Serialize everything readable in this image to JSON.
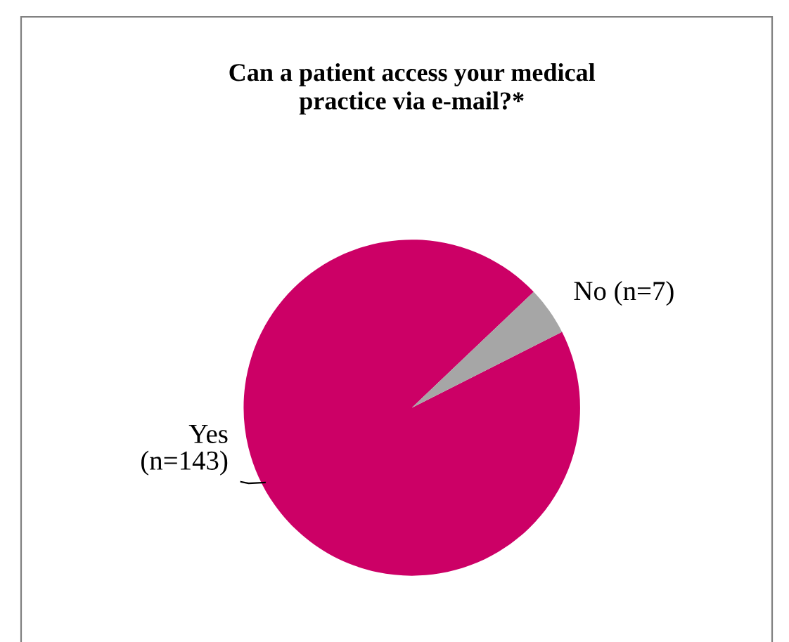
{
  "chart_data": {
    "type": "pie",
    "title": "Can a patient access your medical\npractice via e-mail?*",
    "categories": [
      "Yes",
      "No"
    ],
    "values": [
      143,
      7
    ],
    "value_labels": [
      "(n=143)",
      "(n=7)"
    ],
    "colors": [
      "#cc0066",
      "#a6a6a6"
    ]
  }
}
